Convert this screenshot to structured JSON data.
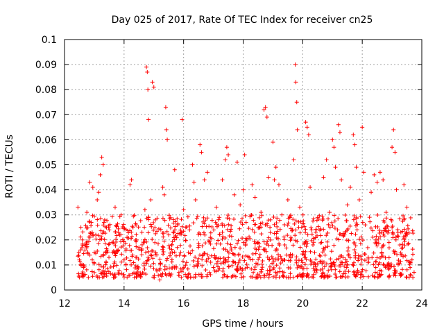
{
  "chart_data": {
    "type": "scatter",
    "title": "Day 025 of 2017, Rate Of TEC Index for receiver cn25",
    "xlabel": "GPS time / hours",
    "ylabel": "ROTI / TECUs",
    "xlim": [
      12,
      24
    ],
    "ylim": [
      0,
      0.1
    ],
    "x_ticks": [
      12,
      14,
      16,
      18,
      20,
      22,
      24
    ],
    "x_tick_labels": [
      "12",
      "14",
      "16",
      "18",
      "20",
      "22",
      "24"
    ],
    "y_ticks": [
      0,
      0.01,
      0.02,
      0.03,
      0.04,
      0.05,
      0.06,
      0.07,
      0.08,
      0.09,
      0.1
    ],
    "y_tick_labels": [
      "0",
      "0.01",
      "0.02",
      "0.03",
      "0.04",
      "0.05",
      "0.06",
      "0.07",
      "0.08",
      "0.09",
      "0.1"
    ],
    "grid": true,
    "marker": "+",
    "marker_color": "#ff0000",
    "series": [
      {
        "name": "ROTI",
        "points": [
          [
            12.45,
            0.033
          ],
          [
            12.5,
            0.012
          ],
          [
            12.55,
            0.025
          ],
          [
            12.6,
            0.02
          ],
          [
            12.7,
            0.018
          ],
          [
            12.75,
            0.031
          ],
          [
            12.8,
            0.005
          ],
          [
            12.85,
            0.043
          ],
          [
            12.9,
            0.027
          ],
          [
            12.95,
            0.041
          ],
          [
            13.0,
            0.015
          ],
          [
            13.05,
            0.022
          ],
          [
            13.1,
            0.036
          ],
          [
            13.15,
            0.039
          ],
          [
            13.2,
            0.046
          ],
          [
            13.25,
            0.053
          ],
          [
            13.3,
            0.05
          ],
          [
            13.35,
            0.028
          ],
          [
            13.4,
            0.011
          ],
          [
            13.5,
            0.024
          ],
          [
            13.6,
            0.019
          ],
          [
            13.7,
            0.033
          ],
          [
            13.8,
            0.016
          ],
          [
            13.9,
            0.03
          ],
          [
            14.0,
            0.012
          ],
          [
            14.1,
            0.021
          ],
          [
            14.2,
            0.042
          ],
          [
            14.25,
            0.044
          ],
          [
            14.3,
            0.025
          ],
          [
            14.4,
            0.013
          ],
          [
            14.5,
            0.017
          ],
          [
            14.6,
            0.023
          ],
          [
            14.7,
            0.032
          ],
          [
            14.75,
            0.089
          ],
          [
            14.78,
            0.087
          ],
          [
            14.8,
            0.08
          ],
          [
            14.82,
            0.068
          ],
          [
            14.9,
            0.036
          ],
          [
            14.95,
            0.083
          ],
          [
            15.0,
            0.081
          ],
          [
            15.05,
            0.028
          ],
          [
            15.1,
            0.014
          ],
          [
            15.2,
            0.004
          ],
          [
            15.3,
            0.041
          ],
          [
            15.35,
            0.038
          ],
          [
            15.4,
            0.073
          ],
          [
            15.42,
            0.064
          ],
          [
            15.45,
            0.06
          ],
          [
            15.5,
            0.022
          ],
          [
            15.6,
            0.018
          ],
          [
            15.7,
            0.048
          ],
          [
            15.8,
            0.026
          ],
          [
            15.9,
            0.015
          ],
          [
            15.95,
            0.068
          ],
          [
            16.0,
            0.032
          ],
          [
            16.1,
            0.011
          ],
          [
            16.2,
            0.024
          ],
          [
            16.3,
            0.05
          ],
          [
            16.35,
            0.043
          ],
          [
            16.4,
            0.036
          ],
          [
            16.5,
            0.017
          ],
          [
            16.55,
            0.058
          ],
          [
            16.6,
            0.055
          ],
          [
            16.7,
            0.044
          ],
          [
            16.8,
            0.047
          ],
          [
            16.9,
            0.021
          ],
          [
            17.0,
            0.009
          ],
          [
            17.1,
            0.033
          ],
          [
            17.2,
            0.029
          ],
          [
            17.3,
            0.044
          ],
          [
            17.4,
            0.052
          ],
          [
            17.45,
            0.057
          ],
          [
            17.5,
            0.054
          ],
          [
            17.6,
            0.016
          ],
          [
            17.7,
            0.038
          ],
          [
            17.8,
            0.051
          ],
          [
            17.9,
            0.034
          ],
          [
            18.0,
            0.04
          ],
          [
            18.05,
            0.054
          ],
          [
            18.1,
            0.027
          ],
          [
            18.2,
            0.013
          ],
          [
            18.3,
            0.042
          ],
          [
            18.4,
            0.037
          ],
          [
            18.5,
            0.019
          ],
          [
            18.6,
            0.031
          ],
          [
            18.7,
            0.072
          ],
          [
            18.75,
            0.073
          ],
          [
            18.8,
            0.069
          ],
          [
            18.85,
            0.045
          ],
          [
            18.9,
            0.025
          ],
          [
            19.0,
            0.059
          ],
          [
            19.05,
            0.044
          ],
          [
            19.1,
            0.049
          ],
          [
            19.2,
            0.042
          ],
          [
            19.3,
            0.03
          ],
          [
            19.4,
            0.018
          ],
          [
            19.5,
            0.036
          ],
          [
            19.6,
            0.021
          ],
          [
            19.7,
            0.052
          ],
          [
            19.75,
            0.09
          ],
          [
            19.77,
            0.083
          ],
          [
            19.8,
            0.075
          ],
          [
            19.82,
            0.064
          ],
          [
            19.9,
            0.033
          ],
          [
            20.0,
            0.011
          ],
          [
            20.1,
            0.067
          ],
          [
            20.15,
            0.065
          ],
          [
            20.2,
            0.062
          ],
          [
            20.25,
            0.041
          ],
          [
            20.3,
            0.024
          ],
          [
            20.4,
            0.015
          ],
          [
            20.5,
            0.029
          ],
          [
            20.6,
            0.008
          ],
          [
            20.7,
            0.045
          ],
          [
            20.8,
            0.052
          ],
          [
            20.9,
            0.031
          ],
          [
            21.0,
            0.06
          ],
          [
            21.05,
            0.057
          ],
          [
            21.1,
            0.049
          ],
          [
            21.2,
            0.066
          ],
          [
            21.25,
            0.063
          ],
          [
            21.3,
            0.044
          ],
          [
            21.4,
            0.022
          ],
          [
            21.5,
            0.034
          ],
          [
            21.6,
            0.041
          ],
          [
            21.7,
            0.062
          ],
          [
            21.75,
            0.058
          ],
          [
            21.8,
            0.049
          ],
          [
            21.9,
            0.036
          ],
          [
            22.0,
            0.065
          ],
          [
            22.05,
            0.047
          ],
          [
            22.1,
            0.026
          ],
          [
            22.2,
            0.013
          ],
          [
            22.3,
            0.039
          ],
          [
            22.4,
            0.046
          ],
          [
            22.5,
            0.043
          ],
          [
            22.6,
            0.047
          ],
          [
            22.7,
            0.044
          ],
          [
            22.8,
            0.031
          ],
          [
            22.9,
            0.019
          ],
          [
            23.0,
            0.057
          ],
          [
            23.05,
            0.064
          ],
          [
            23.1,
            0.055
          ],
          [
            23.15,
            0.04
          ],
          [
            23.2,
            0.023
          ],
          [
            23.3,
            0.014
          ],
          [
            23.4,
            0.042
          ],
          [
            23.5,
            0.033
          ],
          [
            23.6,
            0.011
          ],
          [
            23.7,
            0.005
          ]
        ],
        "dense_band": {
          "x_start": 12.45,
          "x_end": 23.75,
          "y_low": 0.005,
          "y_high": 0.03,
          "count": 1200,
          "note": "dense cloud of + markers spanning the observation window"
        }
      }
    ]
  }
}
